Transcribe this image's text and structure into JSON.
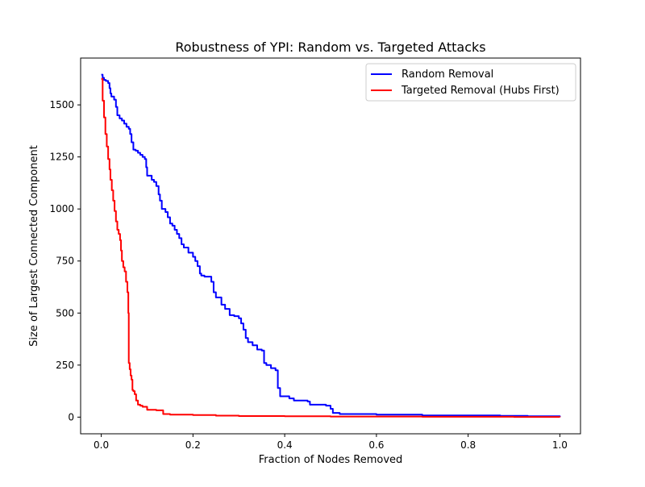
{
  "chart_data": {
    "type": "line",
    "title": "Robustness of YPI: Random vs. Targeted Attacks",
    "xlabel": "Fraction of Nodes Removed",
    "ylabel": "Size of Largest Connected Component",
    "xlim": [
      -0.045,
      1.045
    ],
    "ylim": [
      -80,
      1725
    ],
    "xticks": [
      0.0,
      0.2,
      0.4,
      0.6,
      0.8,
      1.0
    ],
    "xtick_labels": [
      "0.0",
      "0.2",
      "0.4",
      "0.6",
      "0.8",
      "1.0"
    ],
    "yticks": [
      0,
      250,
      500,
      750,
      1000,
      1250,
      1500
    ],
    "ytick_labels": [
      "0",
      "250",
      "500",
      "750",
      "1000",
      "1250",
      "1500"
    ],
    "grid": false,
    "legend_position": "top-right",
    "series": [
      {
        "name": "Random Removal",
        "color": "#0000ff",
        "points": [
          [
            0.0,
            1645
          ],
          [
            0.003,
            1630
          ],
          [
            0.006,
            1620
          ],
          [
            0.01,
            1615
          ],
          [
            0.015,
            1605
          ],
          [
            0.018,
            1580
          ],
          [
            0.02,
            1555
          ],
          [
            0.022,
            1540
          ],
          [
            0.028,
            1525
          ],
          [
            0.032,
            1490
          ],
          [
            0.035,
            1450
          ],
          [
            0.04,
            1435
          ],
          [
            0.045,
            1425
          ],
          [
            0.05,
            1410
          ],
          [
            0.055,
            1395
          ],
          [
            0.06,
            1385
          ],
          [
            0.063,
            1360
          ],
          [
            0.066,
            1320
          ],
          [
            0.07,
            1285
          ],
          [
            0.075,
            1280
          ],
          [
            0.08,
            1270
          ],
          [
            0.085,
            1260
          ],
          [
            0.09,
            1250
          ],
          [
            0.095,
            1240
          ],
          [
            0.098,
            1200
          ],
          [
            0.1,
            1160
          ],
          [
            0.105,
            1160
          ],
          [
            0.11,
            1140
          ],
          [
            0.115,
            1130
          ],
          [
            0.12,
            1110
          ],
          [
            0.125,
            1070
          ],
          [
            0.128,
            1040
          ],
          [
            0.132,
            1000
          ],
          [
            0.14,
            985
          ],
          [
            0.145,
            960
          ],
          [
            0.15,
            930
          ],
          [
            0.155,
            920
          ],
          [
            0.16,
            900
          ],
          [
            0.165,
            880
          ],
          [
            0.17,
            860
          ],
          [
            0.175,
            830
          ],
          [
            0.18,
            815
          ],
          [
            0.19,
            790
          ],
          [
            0.2,
            770
          ],
          [
            0.205,
            750
          ],
          [
            0.21,
            725
          ],
          [
            0.215,
            690
          ],
          [
            0.218,
            680
          ],
          [
            0.225,
            675
          ],
          [
            0.23,
            675
          ],
          [
            0.24,
            650
          ],
          [
            0.245,
            600
          ],
          [
            0.25,
            575
          ],
          [
            0.26,
            575
          ],
          [
            0.262,
            540
          ],
          [
            0.27,
            520
          ],
          [
            0.28,
            490
          ],
          [
            0.29,
            485
          ],
          [
            0.3,
            475
          ],
          [
            0.305,
            450
          ],
          [
            0.31,
            420
          ],
          [
            0.315,
            380
          ],
          [
            0.32,
            360
          ],
          [
            0.33,
            345
          ],
          [
            0.34,
            325
          ],
          [
            0.35,
            320
          ],
          [
            0.355,
            260
          ],
          [
            0.36,
            250
          ],
          [
            0.37,
            235
          ],
          [
            0.38,
            225
          ],
          [
            0.385,
            140
          ],
          [
            0.39,
            100
          ],
          [
            0.4,
            100
          ],
          [
            0.41,
            90
          ],
          [
            0.42,
            80
          ],
          [
            0.45,
            75
          ],
          [
            0.455,
            60
          ],
          [
            0.49,
            55
          ],
          [
            0.5,
            40
          ],
          [
            0.505,
            20
          ],
          [
            0.52,
            15
          ],
          [
            0.6,
            12
          ],
          [
            0.7,
            8
          ],
          [
            0.87,
            6
          ],
          [
            0.93,
            4
          ],
          [
            1.0,
            0
          ]
        ]
      },
      {
        "name": "Targeted Removal (Hubs First)",
        "color": "#ff0000",
        "points": [
          [
            0.0,
            1625
          ],
          [
            0.003,
            1520
          ],
          [
            0.006,
            1440
          ],
          [
            0.009,
            1360
          ],
          [
            0.012,
            1300
          ],
          [
            0.015,
            1240
          ],
          [
            0.018,
            1190
          ],
          [
            0.02,
            1140
          ],
          [
            0.023,
            1090
          ],
          [
            0.026,
            1040
          ],
          [
            0.029,
            990
          ],
          [
            0.032,
            940
          ],
          [
            0.035,
            900
          ],
          [
            0.038,
            880
          ],
          [
            0.041,
            850
          ],
          [
            0.043,
            800
          ],
          [
            0.045,
            750
          ],
          [
            0.048,
            720
          ],
          [
            0.051,
            700
          ],
          [
            0.054,
            650
          ],
          [
            0.057,
            600
          ],
          [
            0.059,
            500
          ],
          [
            0.06,
            260
          ],
          [
            0.062,
            230
          ],
          [
            0.064,
            200
          ],
          [
            0.066,
            180
          ],
          [
            0.068,
            130
          ],
          [
            0.07,
            125
          ],
          [
            0.073,
            110
          ],
          [
            0.076,
            80
          ],
          [
            0.08,
            60
          ],
          [
            0.085,
            55
          ],
          [
            0.09,
            50
          ],
          [
            0.1,
            35
          ],
          [
            0.12,
            33
          ],
          [
            0.135,
            15
          ],
          [
            0.15,
            12
          ],
          [
            0.2,
            10
          ],
          [
            0.25,
            7
          ],
          [
            0.3,
            5
          ],
          [
            0.4,
            4
          ],
          [
            0.5,
            3
          ],
          [
            0.7,
            2
          ],
          [
            0.9,
            1
          ],
          [
            1.0,
            0
          ]
        ]
      }
    ]
  }
}
